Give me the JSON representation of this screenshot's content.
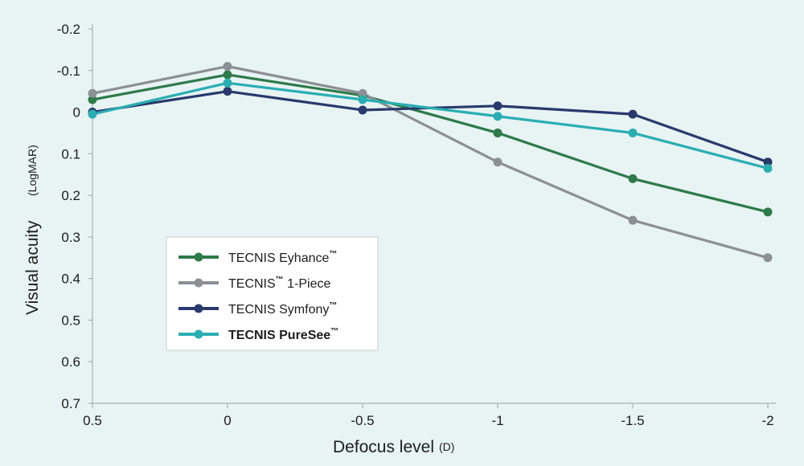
{
  "chart_data": {
    "type": "line",
    "title": "",
    "xlabel": "Defocus level",
    "xlabel_unit": "(D)",
    "ylabel": "Visual acuity",
    "ylabel_unit": "(LogMAR)",
    "categories": [
      "0.5",
      "0",
      "-0.5",
      "-1",
      "-1.5",
      "-2"
    ],
    "x": [
      0.5,
      0,
      -0.5,
      -1,
      -1.5,
      -2
    ],
    "ylim": [
      -0.2,
      0.7
    ],
    "y_inverted": true,
    "y_ticks": [
      "-0.2",
      "-0.1",
      "0",
      "0.1",
      "0.2",
      "0.3",
      "0.4",
      "0.5",
      "0.6",
      "0.7"
    ],
    "y_tick_values": [
      -0.2,
      -0.1,
      0,
      0.1,
      0.2,
      0.3,
      0.4,
      0.5,
      0.6,
      0.7
    ],
    "legend_position": "lower-left",
    "series": [
      {
        "name": "TECNIS Eyhance",
        "tm": "™",
        "color": "#2e7a4a",
        "values": [
          -0.03,
          -0.09,
          -0.04,
          0.05,
          0.16,
          0.24
        ]
      },
      {
        "name": "TECNIS",
        "tm": "™",
        "suffix": " 1-Piece",
        "color": "#8c8f94",
        "values": [
          -0.045,
          -0.11,
          -0.045,
          0.12,
          0.26,
          0.35
        ]
      },
      {
        "name": "TECNIS Symfony",
        "tm": "™",
        "color": "#283a6c",
        "values": [
          0.0,
          -0.05,
          -0.005,
          -0.015,
          0.005,
          0.12
        ]
      },
      {
        "name": "TECNIS PureSee",
        "tm": "™",
        "color": "#2aaeb2",
        "bold": true,
        "values": [
          0.005,
          -0.07,
          -0.03,
          0.01,
          0.05,
          0.135
        ]
      }
    ]
  }
}
